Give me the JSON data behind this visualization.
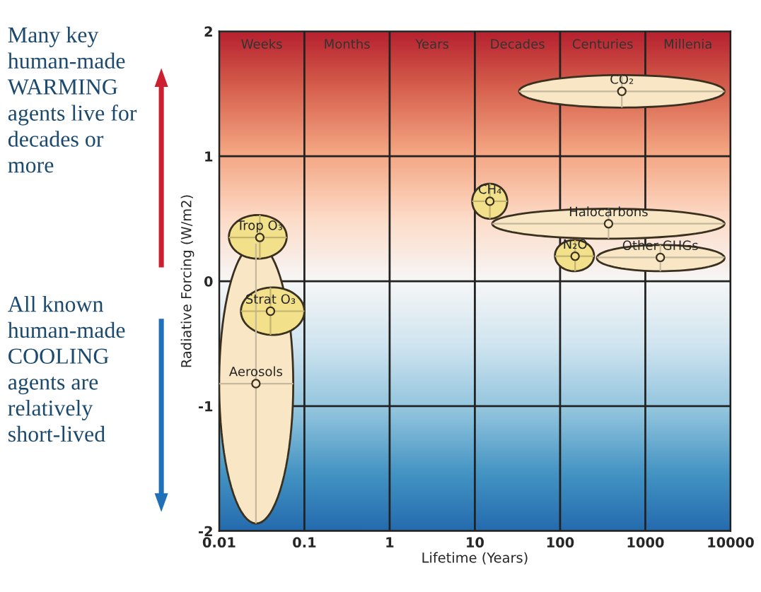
{
  "chart_data": {
    "type": "scatter",
    "xlabel": "Lifetime (Years)",
    "ylabel": "Radiative Forcing (W/m2)",
    "series": [
      {
        "name": "CO₂",
        "color": "#f8e6c4",
        "x": [
          530
        ],
        "values": [
          1.52
        ],
        "xerrors": [
          [
            33,
            8500
          ]
        ],
        "errors": [
          [
            1.39,
            1.65
          ]
        ]
      },
      {
        "name": "CH₄",
        "color": "#f3e08a",
        "x": [
          15
        ],
        "values": [
          0.64
        ],
        "xerrors": [
          [
            9.3,
            24
          ]
        ],
        "errors": [
          [
            0.5,
            0.78
          ]
        ]
      },
      {
        "name": "Halocarbons",
        "color": "#f8e6c4",
        "x": [
          370
        ],
        "values": [
          0.46
        ],
        "xerrors": [
          [
            16,
            8500
          ]
        ],
        "errors": [
          [
            0.34,
            0.58
          ]
        ]
      },
      {
        "name": "N₂O",
        "color": "#f3e08a",
        "x": [
          150
        ],
        "values": [
          0.2
        ],
        "xerrors": [
          [
            87,
            250
          ]
        ],
        "errors": [
          [
            0.08,
            0.33
          ]
        ]
      },
      {
        "name": "Other GHGs",
        "color": "#f8e6c4",
        "x": [
          1500
        ],
        "values": [
          0.19
        ],
        "xerrors": [
          [
            270,
            8500
          ]
        ],
        "errors": [
          [
            0.08,
            0.29
          ]
        ]
      },
      {
        "name": "Aerosols",
        "color": "#f8e6c4",
        "x": [
          0.027
        ],
        "values": [
          -0.82
        ],
        "xerrors": [
          [
            0.01,
            0.074
          ]
        ],
        "errors": [
          [
            -1.94,
            0.3
          ]
        ]
      },
      {
        "name": "Trop O₃",
        "color": "#f3e08a",
        "x": [
          0.03
        ],
        "values": [
          0.35
        ],
        "xerrors": [
          [
            0.013,
            0.062
          ]
        ],
        "errors": [
          [
            0.18,
            0.53
          ]
        ]
      },
      {
        "name": "Strat O₃",
        "color": "#f3e08a",
        "x": [
          0.04
        ],
        "values": [
          -0.24
        ],
        "xerrors": [
          [
            0.018,
            0.1
          ]
        ],
        "errors": [
          [
            -0.43,
            -0.05
          ]
        ]
      }
    ],
    "log": "x",
    "xlim": [
      0.01,
      10000
    ],
    "xticks": [
      0.01,
      0.1,
      1,
      10,
      100,
      1000,
      10000
    ],
    "ylim": [
      -2,
      2
    ],
    "yticks": [
      -2,
      -1,
      0,
      1,
      2
    ],
    "grid": true,
    "legend": false,
    "marker": "circle",
    "annotations": [
      "Weeks",
      "Months",
      "Years",
      "Decades",
      "Centuries",
      "Millenia",
      "Many key\nhuman-made\nWARMING\nagents live for\ndecades or\nmore",
      "All known\nhuman-made\nCOOLING\nagents are\nrelatively\nshort-lived"
    ]
  }
}
